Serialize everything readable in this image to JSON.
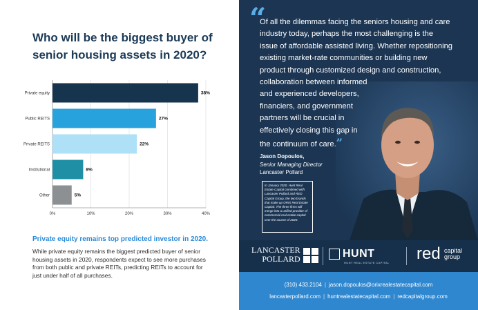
{
  "left": {
    "title": "Who will be the biggest buyer of senior housing assets in 2020?",
    "subhead": "Private equity remains top predicted investor in 2020.",
    "body": "While private equity remains the biggest predicted buyer of senior housing assets in 2020, respondents expect to see more purchases from both public and private REITs, predicting REITs to account for just under half of all purchases."
  },
  "chart_data": {
    "type": "bar",
    "orientation": "horizontal",
    "title": "Who will be the biggest buyer of senior housing assets in 2020?",
    "categories": [
      "Private equity",
      "Public REITS",
      "Private REITS",
      "Institutional",
      "Other"
    ],
    "values": [
      38,
      27,
      22,
      8,
      5
    ],
    "value_labels": [
      "38%",
      "27%",
      "22%",
      "8%",
      "5%"
    ],
    "colors": [
      "#17344f",
      "#27a2dc",
      "#aee0f7",
      "#1f8fa6",
      "#8c9093"
    ],
    "xlim": [
      0,
      40
    ],
    "xticks": [
      0,
      10,
      20,
      30,
      40
    ],
    "xtick_labels": [
      "0%",
      "10%",
      "20%",
      "30%",
      "40%"
    ],
    "xlabel": "",
    "ylabel": ""
  },
  "right": {
    "quote_open": "“",
    "quote_lines": [
      "Of all the dilemmas facing the seniors housing and care",
      "industry today, perhaps the most challenging is the",
      "issue of affordable assisted living. Whether repositioning",
      "existing market-rate communities or building new",
      "product through customized design and construction,",
      "collaboration between informed",
      "and experienced developers,",
      "financiers, and government",
      "partners will be crucial in",
      "effectively closing this gap in",
      "the continuum of care."
    ],
    "quote_close": "”",
    "name": "Jason Dopoulos,",
    "role": "Senior Managing Director",
    "company": "Lancaster Pollard",
    "note": "In January 2020, Hunt Real Estate Capital combined with Lancaster Pollard and RED Capital Group, the two brands that make up ORIX Real Estate Capital. The three firms will merge into a unified provider of commercial real estate capital over the course of 2020."
  },
  "logos": {
    "lancaster_line1": "LANCASTER",
    "lancaster_line2": "POLLARD",
    "hunt": "HUNT",
    "hunt_sub": "HUNT REAL ESTATE CAPITAL",
    "red": "red",
    "red_sub1": "capital",
    "red_sub2": "group"
  },
  "contact": {
    "phone": "(310) 433.2104",
    "email": "jason.dopoulos@orixrealestatecapital.com",
    "site1": "lancasterpollard.com",
    "site2": "huntrealestatecapital.com",
    "site3": "redcapitalgroup.com"
  },
  "colors": {
    "navy": "#1b3553",
    "accent_blue": "#2f87cf",
    "title_navy": "#1b3a57"
  }
}
